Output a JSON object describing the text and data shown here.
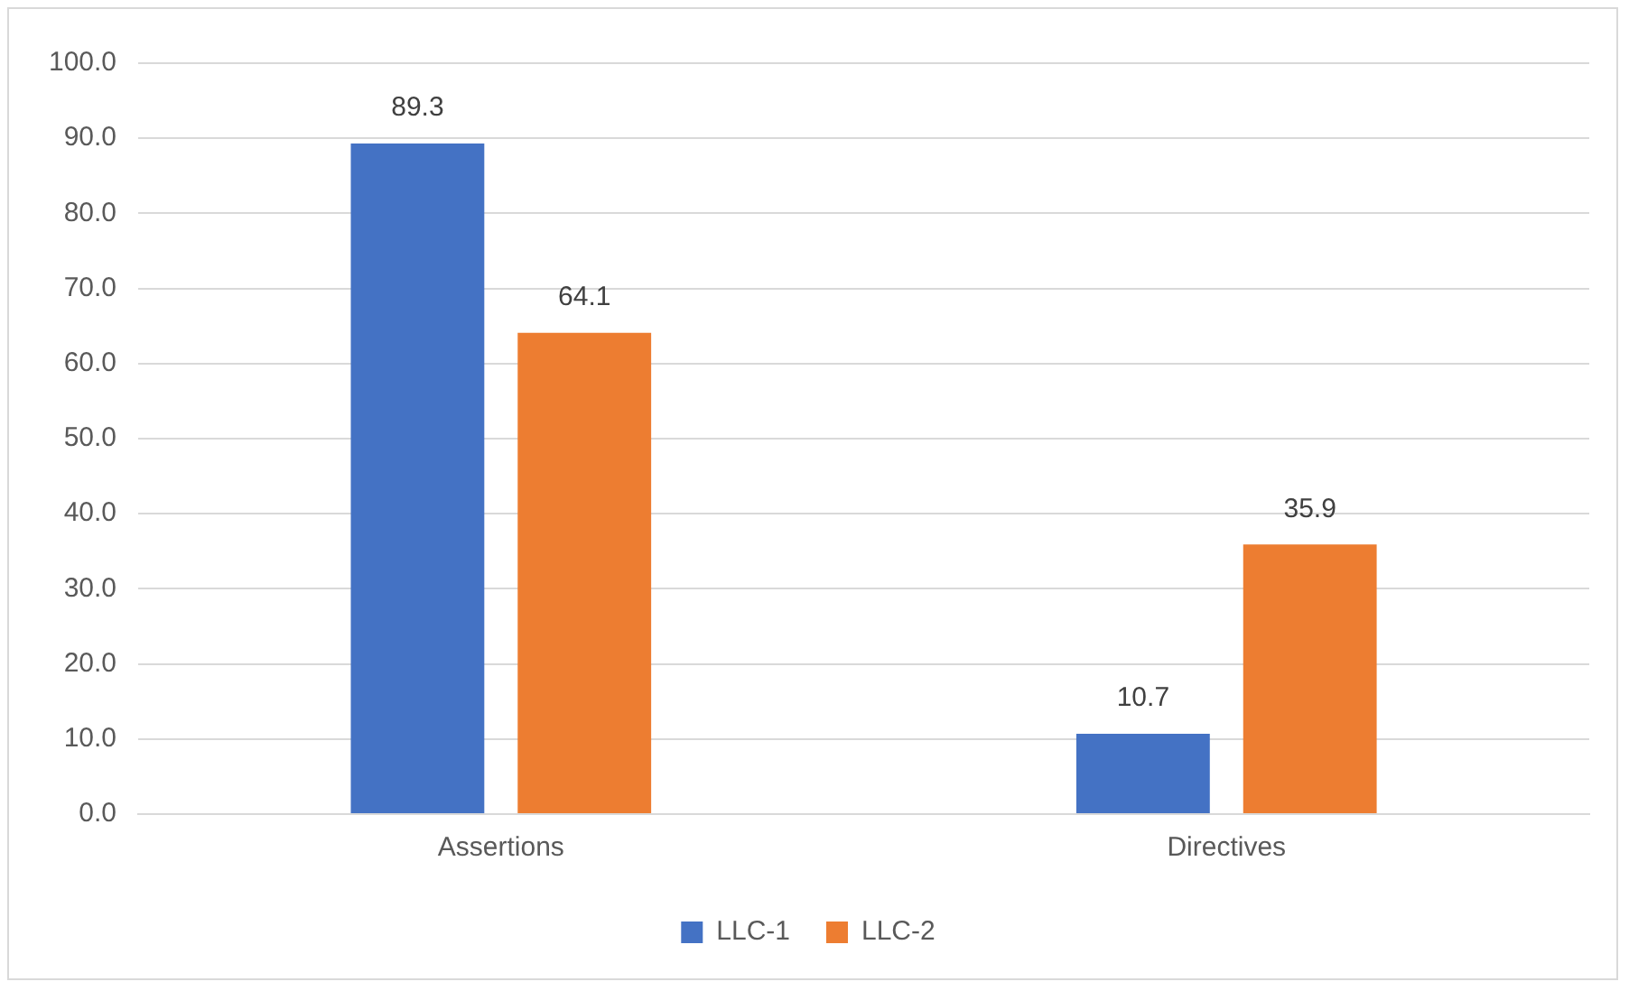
{
  "chart_data": {
    "type": "bar",
    "categories": [
      "Assertions",
      "Directives"
    ],
    "series": [
      {
        "name": "LLC-1",
        "color": "#4472c4",
        "values": [
          89.3,
          10.7
        ]
      },
      {
        "name": "LLC-2",
        "color": "#ed7d31",
        "values": [
          64.1,
          35.9
        ]
      }
    ],
    "ylim": [
      0,
      100
    ],
    "yticks": [
      {
        "value": 0,
        "label": "0.0"
      },
      {
        "value": 10,
        "label": "10.0"
      },
      {
        "value": 20,
        "label": "20.0"
      },
      {
        "value": 30,
        "label": "30.0"
      },
      {
        "value": 40,
        "label": "40.0"
      },
      {
        "value": 50,
        "label": "50.0"
      },
      {
        "value": 60,
        "label": "60.0"
      },
      {
        "value": 70,
        "label": "70.0"
      },
      {
        "value": 80,
        "label": "80.0"
      },
      {
        "value": 90,
        "label": "90.0"
      },
      {
        "value": 100,
        "label": "100.0"
      }
    ],
    "grid": "y",
    "legend": "bottom",
    "data_labels": true
  }
}
